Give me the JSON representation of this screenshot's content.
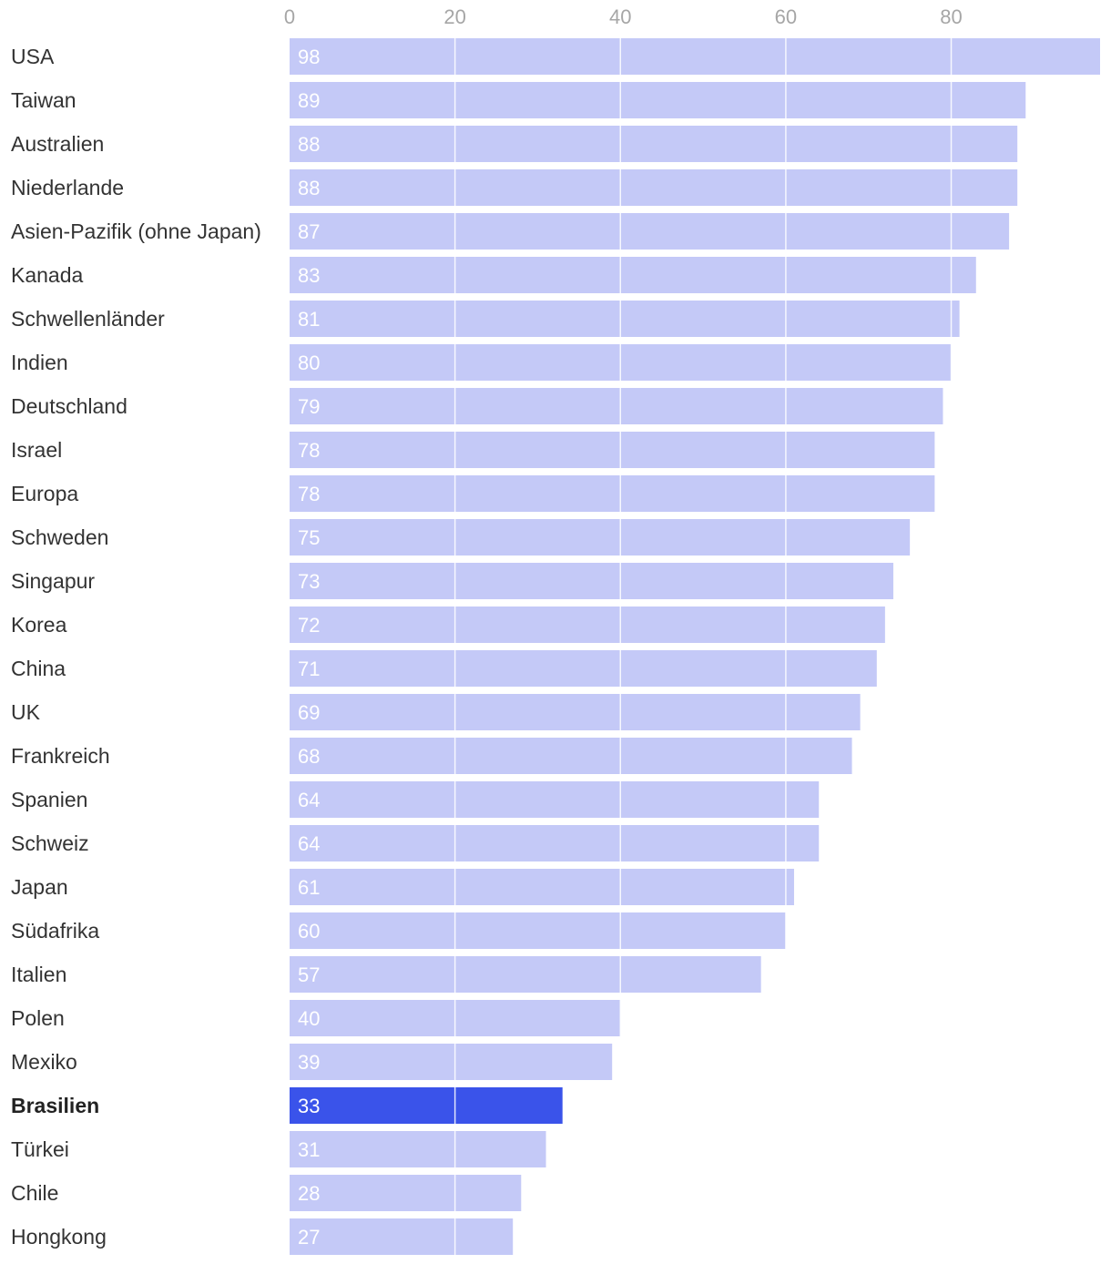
{
  "chart_data": {
    "type": "bar",
    "orientation": "horizontal",
    "categories": [
      "USA",
      "Taiwan",
      "Australien",
      "Niederlande",
      "Asien-Pazifik (ohne Japan)",
      "Kanada",
      "Schwellenländer",
      "Indien",
      "Deutschland",
      "Israel",
      "Europa",
      "Schweden",
      "Singapur",
      "Korea",
      "China",
      "UK",
      "Frankreich",
      "Spanien",
      "Schweiz",
      "Japan",
      "Südafrika",
      "Italien",
      "Polen",
      "Mexiko",
      "Brasilien",
      "Türkei",
      "Chile",
      "Hongkong"
    ],
    "values": [
      98,
      89,
      88,
      88,
      87,
      83,
      81,
      80,
      79,
      78,
      78,
      75,
      73,
      72,
      71,
      69,
      68,
      64,
      64,
      61,
      60,
      57,
      40,
      39,
      33,
      31,
      28,
      27
    ],
    "highlight": "Brasilien",
    "xticks": [
      0,
      20,
      40,
      60,
      80
    ],
    "xlim": [
      0,
      98
    ],
    "xaxis_position": "top",
    "grid": true,
    "data_labels": "inside-start",
    "title": "",
    "xlabel": "",
    "ylabel": "",
    "colors": {
      "bar": "#c4c9f7",
      "bar_highlight": "#3a53ea",
      "grid": "#ffffff",
      "category_text": "#333333",
      "tick_text": "#a6a6a6",
      "value_text": "#ffffff"
    }
  }
}
